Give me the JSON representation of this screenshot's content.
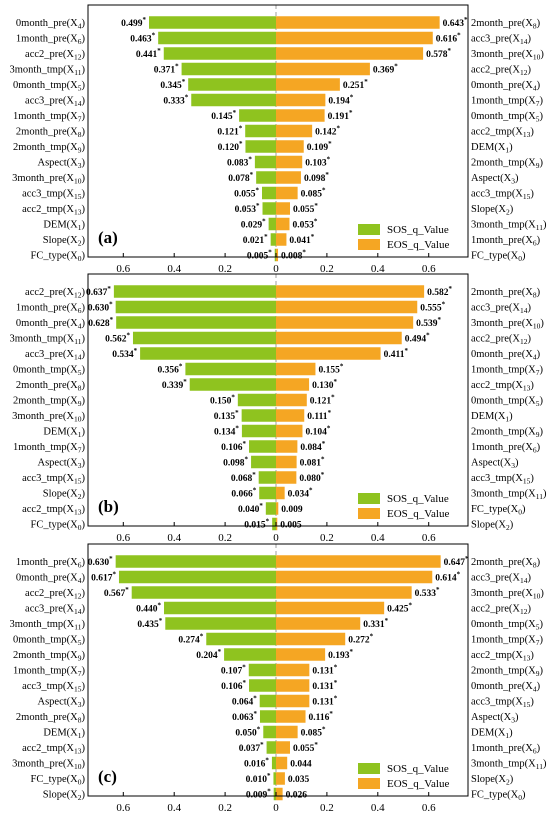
{
  "colors": {
    "sos": "#8fc31f",
    "eos": "#f5a623"
  },
  "chart_data": [
    {
      "panel_label": "(a)",
      "type": "bar",
      "orientation": "diverging-horizontal",
      "xlim": [
        -0.7,
        0.7
      ],
      "x_ticks": [
        -0.6,
        -0.4,
        -0.2,
        0,
        0.2,
        0.4,
        0.6
      ],
      "x_tick_labels": [
        "0.6",
        "0.4",
        "0.2",
        "0",
        "0.2",
        "0.4",
        "0.6"
      ],
      "legend": {
        "position": "bottom-right",
        "entries": [
          "SOS_q_Value",
          "EOS_q_Value"
        ]
      },
      "series": [
        {
          "name": "SOS_q_Value",
          "side": "left",
          "categories": [
            "0month_pre(X4)",
            "1month_pre(X6)",
            "acc2_pre(X12)",
            "3month_tmp(X11)",
            "0month_tmp(X5)",
            "acc3_pre(X14)",
            "1month_tmp(X7)",
            "2month_pre(X8)",
            "2month_tmp(X9)",
            "Aspect(X3)",
            "3month_pre(X10)",
            "acc3_tmp(X15)",
            "acc2_tmp(X13)",
            "DEM(X1)",
            "Slope(X2)",
            "FC_type(X0)"
          ],
          "values": [
            0.499,
            0.463,
            0.441,
            0.371,
            0.345,
            0.333,
            0.145,
            0.121,
            0.12,
            0.083,
            0.078,
            0.055,
            0.053,
            0.029,
            0.021,
            0.005
          ],
          "labels": [
            "0.499*",
            "0.463*",
            "0.441*",
            "0.371*",
            "0.345*",
            "0.333*",
            "0.145*",
            "0.121*",
            "0.120*",
            "0.083*",
            "0.078*",
            "0.055*",
            "0.053*",
            "0.029*",
            "0.021*",
            "0.005*"
          ]
        },
        {
          "name": "EOS_q_Value",
          "side": "right",
          "categories": [
            "2month_pre(X8)",
            "acc3_pre(X14)",
            "3month_pre(X10)",
            "acc2_pre(X12)",
            "0month_pre(X4)",
            "1month_tmp(X7)",
            "0month_tmp(X5)",
            "acc2_tmp(X13)",
            "DEM(X1)",
            "2month_tmp(X9)",
            "Aspect(X3)",
            "acc3_tmp(X15)",
            "Slope(X2)",
            "3month_tmp(X11)",
            "1month_pre(X6)",
            "FC_type(X0)"
          ],
          "values": [
            0.643,
            0.616,
            0.578,
            0.369,
            0.251,
            0.194,
            0.191,
            0.142,
            0.109,
            0.103,
            0.098,
            0.085,
            0.055,
            0.053,
            0.041,
            0.008
          ],
          "labels": [
            "0.643*",
            "0.616*",
            "0.578*",
            "0.369*",
            "0.251*",
            "0.194*",
            "0.191*",
            "0.142*",
            "0.109*",
            "0.103*",
            "0.098*",
            "0.085*",
            "0.055*",
            "0.053*",
            "0.041*",
            "0.008*"
          ]
        }
      ]
    },
    {
      "panel_label": "(b)",
      "type": "bar",
      "orientation": "diverging-horizontal",
      "xlim": [
        -0.7,
        0.7
      ],
      "x_ticks": [
        -0.6,
        -0.4,
        -0.2,
        0,
        0.2,
        0.4,
        0.6
      ],
      "x_tick_labels": [
        "0.6",
        "0.4",
        "0.2",
        "0",
        "0.2",
        "0.4",
        "0.6"
      ],
      "legend": {
        "position": "bottom-right",
        "entries": [
          "SOS_q_Value",
          "EOS_q_Value"
        ]
      },
      "series": [
        {
          "name": "SOS_q_Value",
          "side": "left",
          "categories": [
            "acc2_pre(X12)",
            "1month_pre(X6)",
            "0month_pre(X4)",
            "3month_tmp(X11)",
            "acc3_pre(X14)",
            "0month_tmp(X5)",
            "2month_pre(X8)",
            "2month_tmp(X9)",
            "3month_pre(X10)",
            "DEM(X1)",
            "1month_tmp(X7)",
            "Aspect(X3)",
            "acc3_tmp(X15)",
            "Slope(X2)",
            "acc2_tmp(X13)",
            "FC_type(X0)"
          ],
          "values": [
            0.637,
            0.63,
            0.628,
            0.562,
            0.534,
            0.356,
            0.339,
            0.15,
            0.135,
            0.134,
            0.106,
            0.098,
            0.068,
            0.066,
            0.04,
            0.015
          ],
          "labels": [
            "0.637*",
            "0.630*",
            "0.628*",
            "0.562*",
            "0.534*",
            "0.356*",
            "0.339*",
            "0.150*",
            "0.135*",
            "0.134*",
            "0.106*",
            "0.098*",
            "0.068*",
            "0.066*",
            "0.040*",
            "0.015*"
          ]
        },
        {
          "name": "EOS_q_Value",
          "side": "right",
          "categories": [
            "2month_pre(X8)",
            "acc3_pre(X14)",
            "3month_pre(X10)",
            "acc2_pre(X12)",
            "0month_pre(X4)",
            "1month_tmp(X7)",
            "acc2_tmp(X13)",
            "0month_tmp(X5)",
            "DEM(X1)",
            "2month_tmp(X9)",
            "1month_pre(X6)",
            "Aspect(X3)",
            "acc3_tmp(X15)",
            "3month_tmp(X11)",
            "FC_type(X0)",
            "Slope(X2)"
          ],
          "values": [
            0.582,
            0.555,
            0.539,
            0.494,
            0.411,
            0.155,
            0.13,
            0.121,
            0.111,
            0.104,
            0.084,
            0.081,
            0.08,
            0.034,
            0.009,
            0.005
          ],
          "labels": [
            "0.582*",
            "0.555*",
            "0.539*",
            "0.494*",
            "0.411*",
            "0.155*",
            "0.130*",
            "0.121*",
            "0.111*",
            "0.104*",
            "0.084*",
            "0.081*",
            "0.080*",
            "0.034*",
            "0.009",
            "0.005"
          ]
        }
      ]
    },
    {
      "panel_label": "(c)",
      "type": "bar",
      "orientation": "diverging-horizontal",
      "xlim": [
        -0.7,
        0.7
      ],
      "x_ticks": [
        -0.6,
        -0.4,
        -0.2,
        0,
        0.2,
        0.4,
        0.6
      ],
      "x_tick_labels": [
        "0.6",
        "0.4",
        "0.2",
        "0",
        "0.2",
        "0.4",
        "0.6"
      ],
      "legend": {
        "position": "bottom-right",
        "entries": [
          "SOS_q_Value",
          "EOS_q_Value"
        ]
      },
      "series": [
        {
          "name": "SOS_q_Value",
          "side": "left",
          "categories": [
            "1month_pre(X6)",
            "0month_pre(X4)",
            "acc2_pre(X12)",
            "acc3_pre(X14)",
            "3month_tmp(X11)",
            "0month_tmp(X5)",
            "2month_tmp(X9)",
            "1month_tmp(X7)",
            "acc3_tmp(X15)",
            "Aspect(X3)",
            "2month_pre(X8)",
            "DEM(X1)",
            "acc2_tmp(X13)",
            "3month_pre(X10)",
            "FC_type(X0)",
            "Slope(X2)"
          ],
          "values": [
            0.63,
            0.617,
            0.567,
            0.44,
            0.435,
            0.274,
            0.204,
            0.107,
            0.106,
            0.064,
            0.063,
            0.05,
            0.037,
            0.016,
            0.01,
            0.009
          ],
          "labels": [
            "0.630*",
            "0.617*",
            "0.567*",
            "0.440*",
            "0.435*",
            "0.274*",
            "0.204*",
            "0.107*",
            "0.106*",
            "0.064*",
            "0.063*",
            "0.050*",
            "0.037*",
            "0.016*",
            "0.010*",
            "0.009*"
          ]
        },
        {
          "name": "EOS_q_Value",
          "side": "right",
          "categories": [
            "2month_pre(X8)",
            "acc3_pre(X14)",
            "3month_pre(X10)",
            "acc2_pre(X12)",
            "0month_tmp(X5)",
            "1month_tmp(X7)",
            "acc2_tmp(X13)",
            "2month_tmp(X9)",
            "0month_pre(X4)",
            "acc3_tmp(X15)",
            "Aspect(X3)",
            "DEM(X1)",
            "1month_pre(X6)",
            "3month_tmp(X11)",
            "Slope(X2)",
            "FC_type(X0)"
          ],
          "values": [
            0.647,
            0.614,
            0.533,
            0.425,
            0.331,
            0.272,
            0.193,
            0.131,
            0.131,
            0.131,
            0.116,
            0.085,
            0.055,
            0.044,
            0.035,
            0.026
          ],
          "labels": [
            "0.647*",
            "0.614*",
            "0.533*",
            "0.425*",
            "0.331*",
            "0.272*",
            "0.193*",
            "0.131*",
            "0.131*",
            "0.131*",
            "0.116*",
            "0.085*",
            "0.055*",
            "0.044",
            "0.035",
            "0.026"
          ]
        }
      ]
    }
  ]
}
